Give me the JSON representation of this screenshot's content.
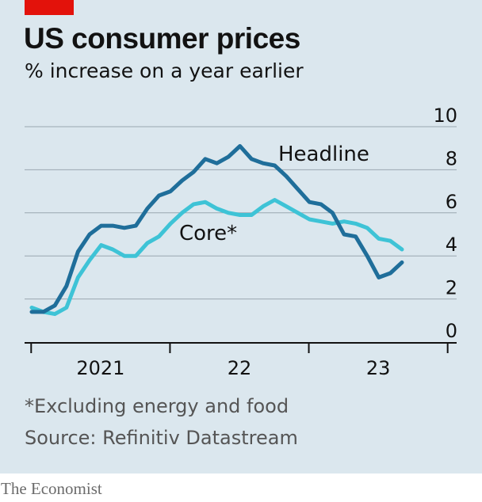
{
  "title": "US consumer prices",
  "subtitle": "% increase on a year earlier",
  "footnote": "*Excluding energy and food",
  "source": "Source: Refinitiv Datastream",
  "brand": "The Economist",
  "colors": {
    "headline": "#1f6e9a",
    "core": "#3ec3d6",
    "accent": "#e3120b",
    "background": "#dbe7ee"
  },
  "chart_data": {
    "type": "line",
    "title": "US consumer prices",
    "subtitle": "% increase on a year earlier",
    "ylim": [
      0,
      10
    ],
    "y_ticks": [
      "0",
      "2",
      "4",
      "6",
      "8",
      "10"
    ],
    "x_tick_labels": [
      "2021",
      "22",
      "23"
    ],
    "x": [
      "2020-12",
      "2021-01",
      "2021-02",
      "2021-03",
      "2021-04",
      "2021-05",
      "2021-06",
      "2021-07",
      "2021-08",
      "2021-09",
      "2021-10",
      "2021-11",
      "2021-12",
      "2022-01",
      "2022-02",
      "2022-03",
      "2022-04",
      "2022-05",
      "2022-06",
      "2022-07",
      "2022-08",
      "2022-09",
      "2022-10",
      "2022-11",
      "2022-12",
      "2023-01",
      "2023-02",
      "2023-03",
      "2023-04",
      "2023-05",
      "2023-06",
      "2023-07",
      "2023-08"
    ],
    "series": [
      {
        "name": "Headline",
        "values": [
          1.4,
          1.4,
          1.7,
          2.6,
          4.2,
          5.0,
          5.4,
          5.4,
          5.3,
          5.4,
          6.2,
          6.8,
          7.0,
          7.5,
          7.9,
          8.5,
          8.3,
          8.6,
          9.1,
          8.5,
          8.3,
          8.2,
          7.7,
          7.1,
          6.5,
          6.4,
          6.0,
          5.0,
          4.9,
          4.0,
          3.0,
          3.2,
          3.7
        ]
      },
      {
        "name": "Core*",
        "values": [
          1.6,
          1.4,
          1.3,
          1.6,
          3.0,
          3.8,
          4.5,
          4.3,
          4.0,
          4.0,
          4.6,
          4.9,
          5.5,
          6.0,
          6.4,
          6.5,
          6.2,
          6.0,
          5.9,
          5.9,
          6.3,
          6.6,
          6.3,
          6.0,
          5.7,
          5.6,
          5.5,
          5.6,
          5.5,
          5.3,
          4.8,
          4.7,
          4.3
        ]
      }
    ]
  }
}
